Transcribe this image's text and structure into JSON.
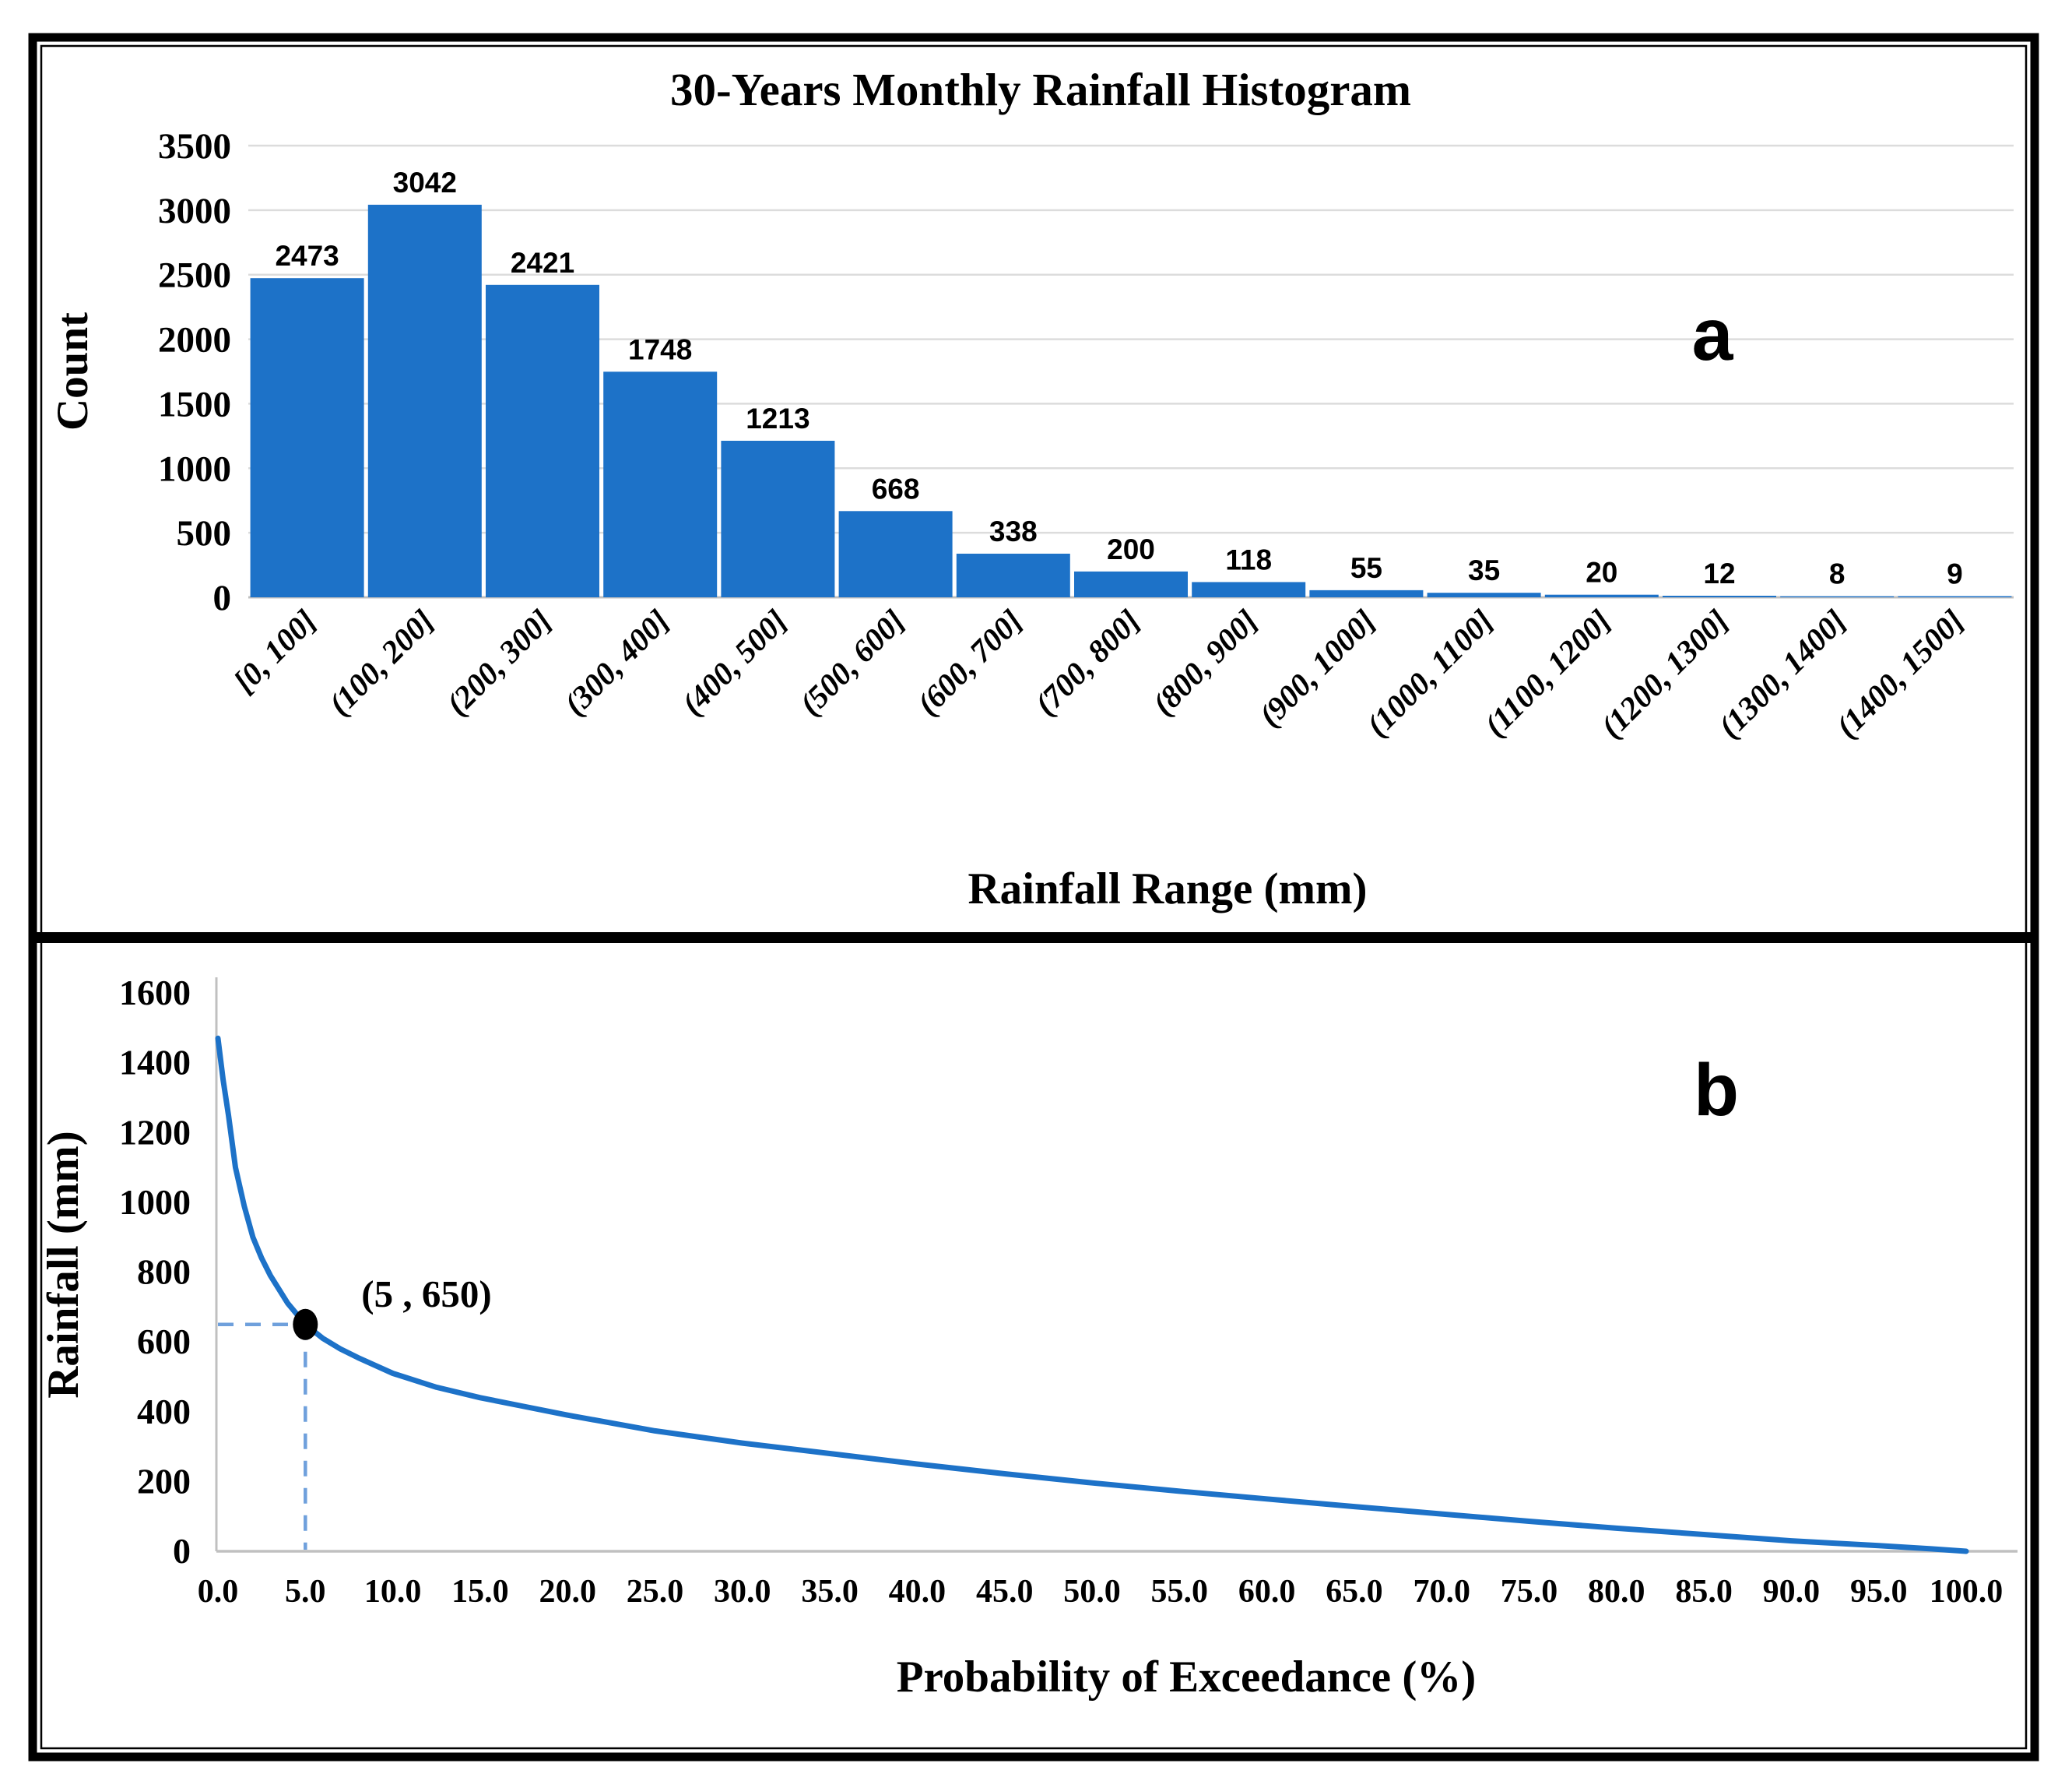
{
  "figure": {
    "panel_a_letter": "a",
    "panel_b_letter": "b"
  },
  "colors": {
    "bar_blue": "#1D72C8",
    "line_blue": "#1D72C8",
    "guide_dashed_blue": "#6FA0DC",
    "gridline_gray": "#DCDCDC",
    "axis_gray": "#C0C0C0",
    "frame_black": "#000000"
  },
  "chart_data": [
    {
      "id": "rainfall-histogram",
      "type": "bar",
      "panel": "a",
      "title": "30-Years Monthly Rainfall Histogram",
      "xlabel": "Rainfall Range (mm)",
      "ylabel": "Count",
      "categories": [
        "[0, 100]",
        "(100, 200]",
        "(200, 300]",
        "(300, 400]",
        "(400, 500]",
        "(500, 600]",
        "(600, 700]",
        "(700, 800]",
        "(800, 900]",
        "(900, 1000]",
        "(1000, 1100]",
        "(1100, 1200]",
        "(1200, 1300]",
        "(1300, 1400]",
        "(1400, 1500]"
      ],
      "values": [
        2473,
        3042,
        2421,
        1748,
        1213,
        668,
        338,
        200,
        118,
        55,
        35,
        20,
        12,
        8,
        9
      ],
      "y_ticks": [
        0,
        500,
        1000,
        1500,
        2000,
        2500,
        3000,
        3500
      ],
      "ylim": [
        0,
        3500
      ],
      "grid": true,
      "legend": "none"
    },
    {
      "id": "exceedance-curve",
      "type": "line",
      "panel": "b",
      "title": "",
      "xlabel": "Probability of Exceedance (%)",
      "ylabel": "Rainfall (mm)",
      "x_tick_labels": [
        "0.0",
        "5.0",
        "10.0",
        "15.0",
        "20.0",
        "25.0",
        "30.0",
        "35.0",
        "40.0",
        "45.0",
        "50.0",
        "55.0",
        "60.0",
        "65.0",
        "70.0",
        "75.0",
        "80.0",
        "85.0",
        "90.0",
        "95.0",
        "100.0"
      ],
      "y_ticks": [
        0,
        200,
        400,
        600,
        800,
        1000,
        1200,
        1400,
        1600
      ],
      "xlim": [
        0,
        100
      ],
      "ylim": [
        0,
        1600
      ],
      "grid": false,
      "legend": "none",
      "series": [
        {
          "name": "probability-of-exceedance",
          "points": [
            [
              0,
              1470
            ],
            [
              0.3,
              1350
            ],
            [
              0.6,
              1250
            ],
            [
              1,
              1100
            ],
            [
              1.5,
              990
            ],
            [
              2,
              900
            ],
            [
              2.5,
              840
            ],
            [
              3,
              790
            ],
            [
              4,
              710
            ],
            [
              5,
              650
            ],
            [
              6,
              610
            ],
            [
              7,
              580
            ],
            [
              8,
              555
            ],
            [
              10,
              510
            ],
            [
              12.5,
              470
            ],
            [
              15,
              440
            ],
            [
              17.5,
              415
            ],
            [
              20,
              390
            ],
            [
              25,
              345
            ],
            [
              30,
              310
            ],
            [
              35,
              280
            ],
            [
              40,
              250
            ],
            [
              45,
              222
            ],
            [
              50,
              196
            ],
            [
              55,
              172
            ],
            [
              60,
              150
            ],
            [
              65,
              128
            ],
            [
              70,
              107
            ],
            [
              75,
              86
            ],
            [
              80,
              66
            ],
            [
              85,
              48
            ],
            [
              90,
              30
            ],
            [
              95,
              16
            ],
            [
              98,
              7
            ],
            [
              100,
              0
            ]
          ]
        }
      ],
      "annotation": {
        "label": "(5 , 650)",
        "x": 5,
        "y": 650
      }
    }
  ]
}
